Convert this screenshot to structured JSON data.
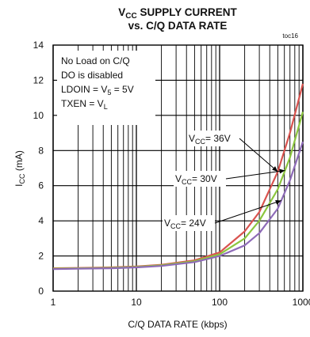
{
  "chart_data": {
    "type": "line",
    "title_line1": {
      "main": "V",
      "sub": "CC",
      "rest": " SUPPLY CURRENT"
    },
    "title_line2": "vs. C/Q DATA RATE",
    "figure_id": "toc16",
    "xlabel": "C/Q DATA RATE (kbps)",
    "ylabel": {
      "main": "I",
      "sub": "CC",
      "rest": " (mA)"
    },
    "x_scale": "log",
    "xlim": [
      1,
      1000
    ],
    "ylim": [
      0,
      14
    ],
    "x_ticks": [
      1,
      10,
      100,
      1000
    ],
    "x_tick_labels": [
      "1",
      "10",
      "100",
      "1000"
    ],
    "y_ticks": [
      0,
      2,
      4,
      6,
      8,
      10,
      12,
      14
    ],
    "y_tick_labels": [
      "0",
      "2",
      "4",
      "6",
      "8",
      "10",
      "12",
      "14"
    ],
    "grid": true,
    "conditions": [
      {
        "id": "cond1",
        "parts": [
          {
            "t": "No Load on C/Q"
          }
        ]
      },
      {
        "id": "cond2",
        "parts": [
          {
            "t": "DO is disabled"
          }
        ]
      },
      {
        "id": "cond3",
        "parts": [
          {
            "t": "LDOIN = V"
          },
          {
            "t": "5",
            "sub": true
          },
          {
            "t": " = 5V"
          }
        ]
      },
      {
        "id": "cond4",
        "parts": [
          {
            "t": "TXEN = V"
          },
          {
            "t": "L",
            "sub": true
          }
        ]
      }
    ],
    "series": [
      {
        "label_main": "V",
        "label_sub": "CC",
        "label_rest": "= 36V",
        "color": "#d9534f",
        "x": [
          1,
          2,
          5,
          10,
          20,
          50,
          100,
          200,
          300,
          500,
          700,
          1000
        ],
        "y": [
          1.3,
          1.32,
          1.35,
          1.4,
          1.5,
          1.75,
          2.2,
          3.4,
          4.5,
          6.8,
          9.0,
          11.8
        ]
      },
      {
        "label_main": "V",
        "label_sub": "CC",
        "label_rest": "= 30V",
        "color": "#8cc63f",
        "x": [
          1,
          2,
          5,
          10,
          20,
          50,
          100,
          200,
          300,
          500,
          700,
          1000
        ],
        "y": [
          1.28,
          1.3,
          1.33,
          1.38,
          1.47,
          1.7,
          2.1,
          3.0,
          4.0,
          5.8,
          7.6,
          10.2
        ]
      },
      {
        "label_main": "V",
        "label_sub": "CC",
        "label_rest": "= 24V",
        "color": "#8e6bb8",
        "x": [
          1,
          2,
          5,
          10,
          20,
          50,
          100,
          200,
          300,
          500,
          700,
          1000
        ],
        "y": [
          1.25,
          1.28,
          1.3,
          1.35,
          1.43,
          1.65,
          2.0,
          2.6,
          3.3,
          4.7,
          6.3,
          8.5
        ]
      }
    ]
  }
}
